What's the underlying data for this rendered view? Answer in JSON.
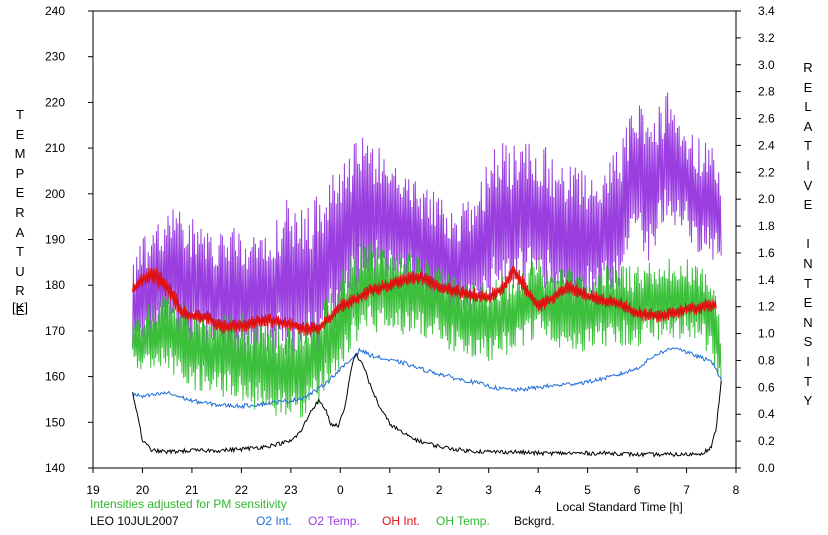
{
  "chart_data": {
    "type": "line",
    "notes": {
      "adjusted": "Intensities adjusted for PM sensitivity",
      "station_date": "LEO 10JUL2007"
    },
    "ylabel_left": "TEMPERATURE",
    "ylabel_left_unit": "[K]",
    "ylabel_right": "RELATIVE INTENSITY",
    "xlabel": "Local Standard Time [h]",
    "x_ticks": [
      "19",
      "20",
      "21",
      "22",
      "23",
      "0",
      "1",
      "2",
      "3",
      "4",
      "5",
      "6",
      "7",
      "8"
    ],
    "x_range": [
      19,
      32
    ],
    "y_left_range": [
      140,
      240
    ],
    "y_left_ticks": [
      "140",
      "150",
      "160",
      "170",
      "180",
      "190",
      "200",
      "210",
      "220",
      "230",
      "240"
    ],
    "y_right_range": [
      0.0,
      3.4
    ],
    "y_right_ticks": [
      "0.0",
      "0.2",
      "0.4",
      "0.6",
      "0.8",
      "1.0",
      "1.2",
      "1.4",
      "1.6",
      "1.8",
      "2.0",
      "2.2",
      "2.4",
      "2.6",
      "2.8",
      "3.0",
      "3.2",
      "3.4"
    ],
    "grid": false,
    "legend_position": "bottom",
    "series": [
      {
        "name": "O2 Int.",
        "color": "#1f6fd6",
        "axis": "right",
        "x": [
          19.8,
          20.0,
          20.5,
          21.0,
          21.5,
          22.0,
          22.5,
          23.0,
          23.3,
          23.6,
          23.9,
          24.2,
          24.4,
          24.6,
          24.8,
          25.0,
          25.3,
          25.6,
          26.0,
          26.4,
          26.8,
          27.2,
          27.6,
          28.0,
          28.5,
          29.0,
          29.5,
          30.0,
          30.4,
          30.8,
          31.0,
          31.3,
          31.55,
          31.7
        ],
        "y": [
          0.55,
          0.53,
          0.56,
          0.5,
          0.47,
          0.46,
          0.48,
          0.5,
          0.53,
          0.6,
          0.7,
          0.8,
          0.88,
          0.84,
          0.82,
          0.8,
          0.78,
          0.74,
          0.7,
          0.66,
          0.63,
          0.59,
          0.58,
          0.6,
          0.62,
          0.64,
          0.68,
          0.74,
          0.85,
          0.9,
          0.86,
          0.82,
          0.78,
          0.65
        ]
      },
      {
        "name": "O2 Temp.",
        "color": "#9a3ee0",
        "axis": "left",
        "x": [
          19.8,
          20.0,
          20.5,
          21.0,
          21.5,
          22.0,
          22.5,
          23.0,
          23.3,
          23.6,
          24.0,
          24.4,
          24.8,
          25.2,
          25.6,
          26.0,
          26.4,
          26.8,
          27.2,
          27.6,
          28.0,
          28.5,
          29.0,
          29.5,
          30.0,
          30.3,
          30.6,
          30.9,
          31.2,
          31.5,
          31.7
        ],
        "y": [
          175,
          178,
          182,
          180,
          178,
          177,
          178,
          182,
          180,
          182,
          190,
          195,
          196,
          194,
          190,
          186,
          184,
          188,
          196,
          194,
          196,
          190,
          190,
          192,
          204,
          200,
          208,
          205,
          200,
          198,
          195
        ],
        "spread": [
          10,
          14,
          17,
          18,
          18,
          17,
          17,
          20,
          20,
          20,
          20,
          20,
          18,
          16,
          16,
          15,
          15,
          17,
          18,
          18,
          18,
          18,
          18,
          18,
          18,
          18,
          16,
          14,
          14,
          14,
          10
        ]
      },
      {
        "name": "OH Int.",
        "color": "#e01010",
        "axis": "right",
        "x": [
          19.8,
          20.0,
          20.2,
          20.5,
          20.8,
          21.0,
          21.3,
          21.6,
          22.0,
          22.5,
          23.0,
          23.3,
          23.6,
          24.0,
          24.3,
          24.6,
          25.0,
          25.3,
          25.6,
          26.0,
          26.5,
          27.0,
          27.3,
          27.5,
          27.8,
          28.0,
          28.3,
          28.6,
          29.0,
          29.3,
          29.6,
          30.0,
          30.5,
          31.0,
          31.3,
          31.6
        ],
        "y": [
          1.33,
          1.4,
          1.45,
          1.35,
          1.15,
          1.13,
          1.12,
          1.05,
          1.06,
          1.1,
          1.07,
          1.03,
          1.05,
          1.2,
          1.25,
          1.32,
          1.36,
          1.4,
          1.42,
          1.35,
          1.3,
          1.27,
          1.35,
          1.48,
          1.3,
          1.2,
          1.27,
          1.35,
          1.28,
          1.25,
          1.23,
          1.15,
          1.13,
          1.18,
          1.2,
          1.22
        ],
        "spread": [
          0.06,
          0.06,
          0.08,
          0.1,
          0.08,
          0.06,
          0.06,
          0.06,
          0.06,
          0.06,
          0.06,
          0.06,
          0.06,
          0.06,
          0.06,
          0.06,
          0.06,
          0.06,
          0.06,
          0.06,
          0.06,
          0.06,
          0.06,
          0.08,
          0.06,
          0.06,
          0.06,
          0.06,
          0.06,
          0.06,
          0.06,
          0.06,
          0.06,
          0.06,
          0.06,
          0.06
        ]
      },
      {
        "name": "OH Temp.",
        "color": "#3cc03c",
        "axis": "left",
        "x": [
          19.8,
          20.0,
          20.5,
          21.0,
          21.5,
          22.0,
          22.5,
          23.0,
          23.3,
          23.6,
          24.0,
          24.3,
          24.6,
          25.0,
          25.5,
          26.0,
          26.5,
          27.0,
          27.5,
          28.0,
          28.5,
          29.0,
          29.5,
          30.0,
          30.5,
          31.0,
          31.3,
          31.6,
          31.7
        ],
        "y": [
          168,
          168,
          170,
          166,
          165,
          164,
          162,
          160,
          162,
          165,
          172,
          178,
          180,
          178,
          178,
          176,
          173,
          172,
          174,
          177,
          175,
          174,
          176,
          175,
          177,
          177,
          176,
          170,
          163
        ],
        "spread": [
          6,
          8,
          10,
          10,
          10,
          11,
          12,
          12,
          12,
          12,
          12,
          12,
          12,
          10,
          10,
          10,
          10,
          10,
          10,
          10,
          10,
          10,
          10,
          10,
          10,
          10,
          10,
          10,
          6
        ]
      },
      {
        "name": "Bckgrd.",
        "color": "#000000",
        "axis": "right",
        "x": [
          19.8,
          19.9,
          20.0,
          20.2,
          20.5,
          21.0,
          21.5,
          22.0,
          22.5,
          23.0,
          23.2,
          23.4,
          23.55,
          23.7,
          23.8,
          23.95,
          24.1,
          24.2,
          24.3,
          24.45,
          24.6,
          24.8,
          25.0,
          25.3,
          25.6,
          26.0,
          26.5,
          27.0,
          27.5,
          28.0,
          28.5,
          29.0,
          29.5,
          30.0,
          30.5,
          31.0,
          31.3,
          31.5,
          31.6,
          31.7
        ],
        "y": [
          0.55,
          0.4,
          0.2,
          0.13,
          0.12,
          0.13,
          0.13,
          0.14,
          0.16,
          0.2,
          0.27,
          0.42,
          0.5,
          0.44,
          0.33,
          0.31,
          0.45,
          0.7,
          0.85,
          0.78,
          0.62,
          0.45,
          0.33,
          0.25,
          0.2,
          0.16,
          0.13,
          0.12,
          0.12,
          0.11,
          0.11,
          0.11,
          0.11,
          0.1,
          0.1,
          0.1,
          0.11,
          0.15,
          0.3,
          0.65
        ]
      }
    ]
  }
}
